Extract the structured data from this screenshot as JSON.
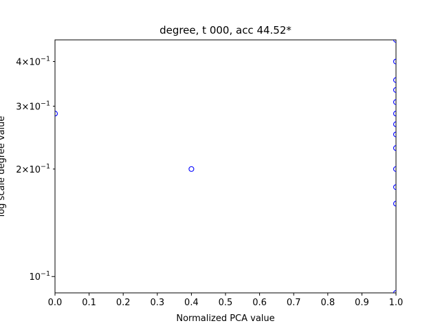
{
  "chart_data": {
    "type": "scatter",
    "title": "degree, t 000, acc 44.52*",
    "xlabel": "Normalized PCA value",
    "ylabel": "log scale degree value",
    "xlim": [
      0.0,
      1.0
    ],
    "ylim": [
      0.09,
      0.46
    ],
    "yscale": "log",
    "grid": false,
    "marker": "hollow-circle",
    "marker_color": "#0000ff",
    "x_ticks": [
      "0.0",
      "0.1",
      "0.2",
      "0.3",
      "0.4",
      "0.5",
      "0.6",
      "0.7",
      "0.8",
      "0.9",
      "1.0"
    ],
    "x_tick_values": [
      0.0,
      0.1,
      0.2,
      0.3,
      0.4,
      0.5,
      0.6,
      0.7,
      0.8,
      0.9,
      1.0
    ],
    "y_major_ticks": [
      {
        "base": "10",
        "exp": "−1",
        "value": 0.1
      }
    ],
    "y_minor_ticks": [
      {
        "mant": "2",
        "times": "×",
        "base": "10",
        "exp": "−1",
        "value": 0.2
      },
      {
        "mant": "3",
        "times": "×",
        "base": "10",
        "exp": "−1",
        "value": 0.3
      },
      {
        "mant": "4",
        "times": "×",
        "base": "10",
        "exp": "−1",
        "value": 0.4
      }
    ],
    "points": [
      {
        "x": 0.0,
        "y": 0.286
      },
      {
        "x": 0.4,
        "y": 0.2
      },
      {
        "x": 1.0,
        "y": 0.46
      },
      {
        "x": 1.0,
        "y": 0.4
      },
      {
        "x": 1.0,
        "y": 0.355
      },
      {
        "x": 1.0,
        "y": 0.333
      },
      {
        "x": 1.0,
        "y": 0.308
      },
      {
        "x": 1.0,
        "y": 0.286
      },
      {
        "x": 1.0,
        "y": 0.267
      },
      {
        "x": 1.0,
        "y": 0.25
      },
      {
        "x": 1.0,
        "y": 0.229
      },
      {
        "x": 1.0,
        "y": 0.2
      },
      {
        "x": 1.0,
        "y": 0.178
      },
      {
        "x": 1.0,
        "y": 0.16
      },
      {
        "x": 1.0,
        "y": 0.09
      }
    ]
  }
}
